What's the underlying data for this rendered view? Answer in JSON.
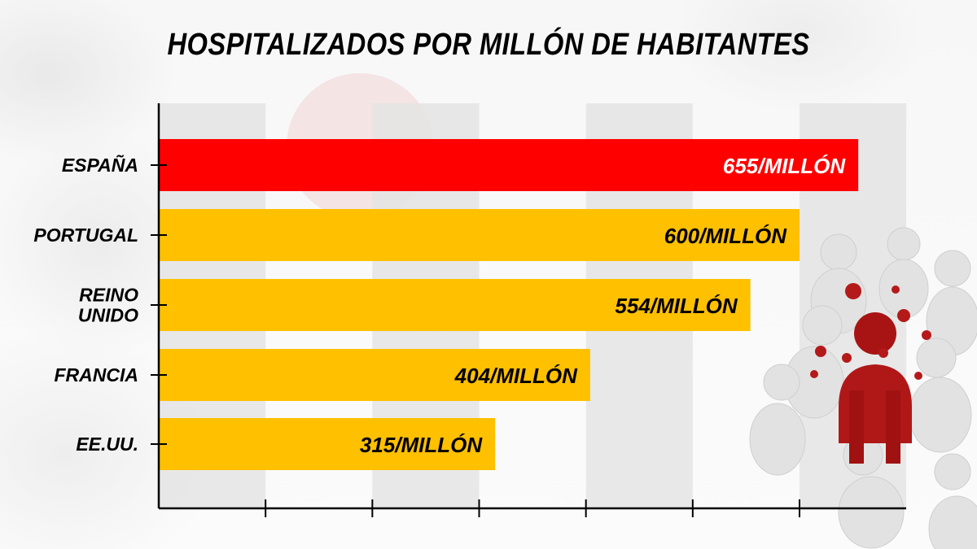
{
  "chart_data": {
    "type": "bar",
    "orientation": "horizontal",
    "title": "HOSPITALIZADOS POR MILLÓN DE HABITANTES",
    "categories": [
      {
        "lines": [
          "ESPAÑA"
        ]
      },
      {
        "lines": [
          "PORTUGAL"
        ]
      },
      {
        "lines": [
          "REINO",
          "UNIDO"
        ]
      },
      {
        "lines": [
          "FRANCIA"
        ]
      },
      {
        "lines": [
          "EE.UU."
        ]
      }
    ],
    "values": [
      655,
      600,
      554,
      404,
      315
    ],
    "data_labels": [
      "655/MILLÓN",
      "600/MILLÓN",
      "554/MILLÓN",
      "404/MILLÓN",
      "315/MILLÓN"
    ],
    "bar_colors": [
      "#ff0000",
      "#ffc000",
      "#ffc000",
      "#ffc000",
      "#ffc000"
    ],
    "label_colors": [
      "#ffffff",
      "#000000",
      "#000000",
      "#000000",
      "#000000"
    ],
    "xlim": [
      0,
      700
    ],
    "x_tick_step": 100,
    "grid": "alternating vertical bands",
    "band_color": "#e4e4e4",
    "axis_color": "#000000"
  }
}
